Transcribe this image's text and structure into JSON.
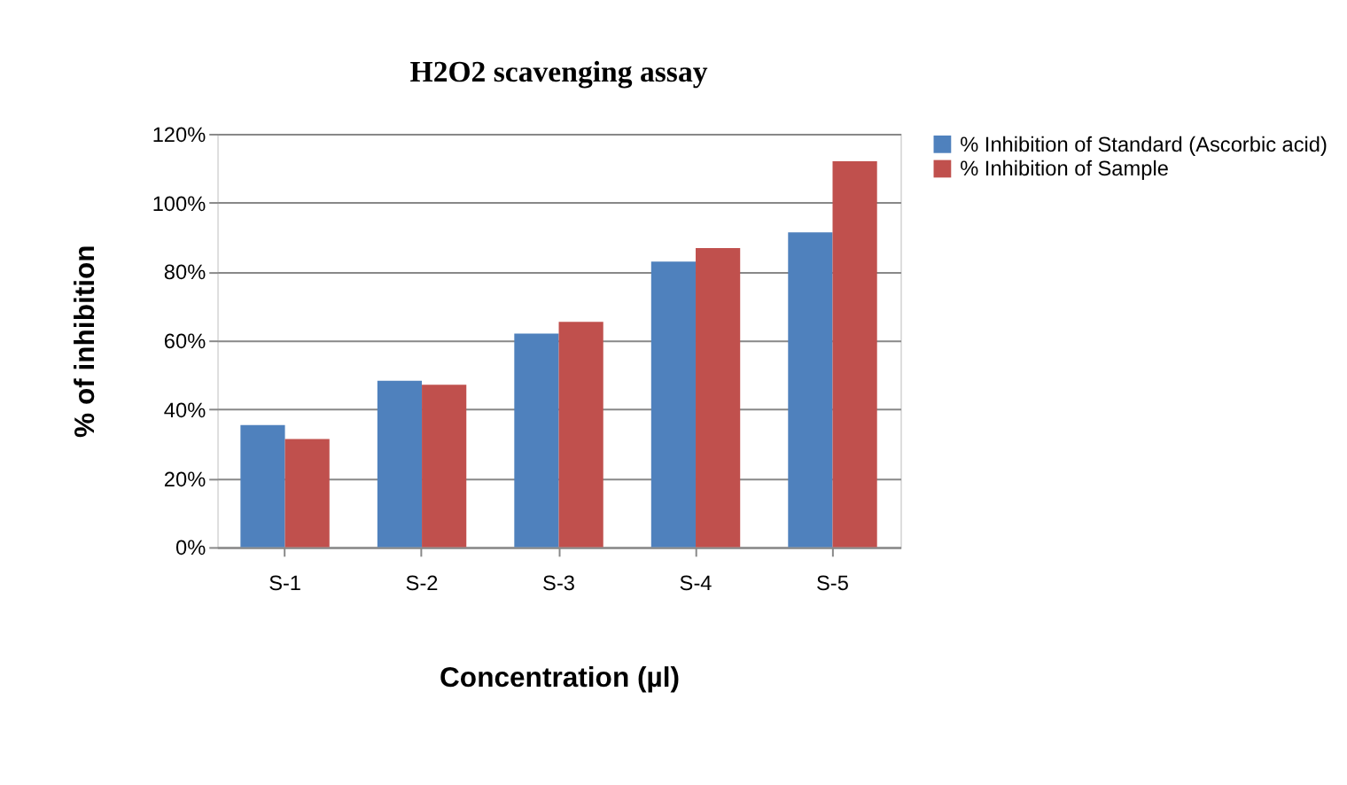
{
  "chart_data": {
    "type": "bar",
    "title": "H2O2 scavenging assay",
    "xlabel": "Concentration (µl)",
    "ylabel": "%  of inhibition",
    "categories": [
      "S-1",
      "S-2",
      "S-3",
      "S-4",
      "S-5"
    ],
    "series": [
      {
        "name": "% Inhibition of Standard (Ascorbic acid)",
        "color": "#4f81bd",
        "values": [
          35.4,
          48.3,
          62,
          82.9,
          91.4
        ]
      },
      {
        "name": "% Inhibition of  Sample",
        "color": "#c0504d",
        "values": [
          31.4,
          47.1,
          65.4,
          86.8,
          112
        ]
      }
    ],
    "ylim": [
      0,
      120
    ],
    "yticks": [
      {
        "value": 0,
        "label": "0%"
      },
      {
        "value": 20,
        "label": "20%"
      },
      {
        "value": 40,
        "label": "40%"
      },
      {
        "value": 60,
        "label": "60%"
      },
      {
        "value": 80,
        "label": "80%"
      },
      {
        "value": 100,
        "label": "100%"
      },
      {
        "value": 120,
        "label": "120%"
      }
    ],
    "grid": "y",
    "legend": "right"
  }
}
